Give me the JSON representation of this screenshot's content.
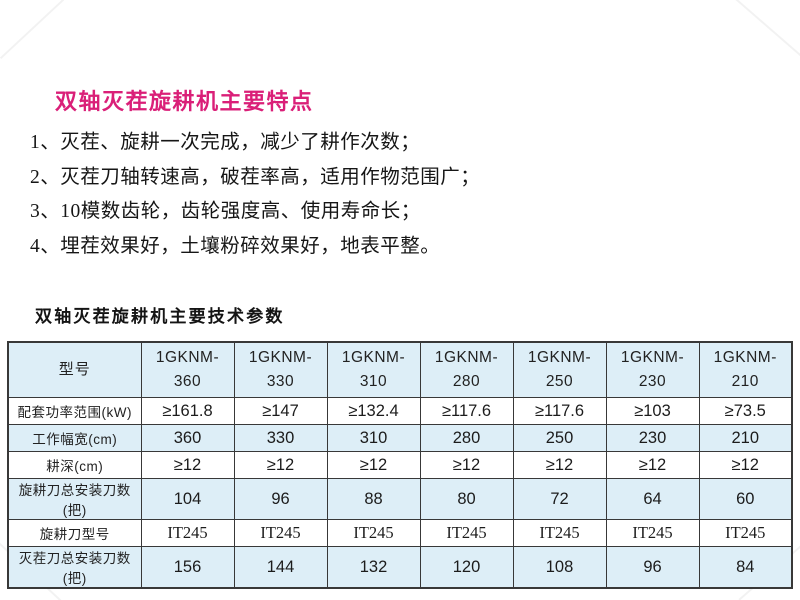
{
  "colors": {
    "title_pink": "#da1f78",
    "table_border": "#383838",
    "table_header_bg": "#ddeef7",
    "table_alt_row_bg": "#ddeef7"
  },
  "features": {
    "title": "双轴灭茬旋耕机主要特点",
    "items": [
      "1、灭茬、旋耕一次完成，减少了耕作次数；",
      "2、灭茬刀轴转速高，破茬率高，适用作物范围广；",
      "3、10模数齿轮，齿轮强度高、使用寿命长；",
      "4、埋茬效果好，土壤粉碎效果好，地表平整。"
    ]
  },
  "params": {
    "title": "双轴灭茬旋耕机主要技术参数"
  },
  "table": {
    "corner_header": "型号",
    "model_headers": [
      "1GKNM-\n360",
      "1GKNM-\n330",
      "1GKNM-\n310",
      "1GKNM-\n280",
      "1GKNM-\n250",
      "1GKNM-\n230",
      "1GKNM-\n210"
    ],
    "rows": [
      {
        "label": "配套功率范围(kW)",
        "serif": false,
        "values": [
          "≥161.8",
          "≥147",
          "≥132.4",
          "≥117.6",
          "≥117.6",
          "≥103",
          "≥73.5"
        ]
      },
      {
        "label": "工作幅宽(cm)",
        "serif": false,
        "values": [
          "360",
          "330",
          "310",
          "280",
          "250",
          "230",
          "210"
        ]
      },
      {
        "label": "耕深(cm)",
        "serif": false,
        "values": [
          "≥12",
          "≥12",
          "≥12",
          "≥12",
          "≥12",
          "≥12",
          "≥12"
        ]
      },
      {
        "label": "旋耕刀总安装刀数(把)",
        "serif": false,
        "values": [
          "104",
          "96",
          "88",
          "80",
          "72",
          "64",
          "60"
        ]
      },
      {
        "label": "旋耕刀型号",
        "serif": true,
        "values": [
          "IT245",
          "IT245",
          "IT245",
          "IT245",
          "IT245",
          "IT245",
          "IT245"
        ]
      },
      {
        "label": "灭茬刀总安装刀数(把)",
        "serif": false,
        "values": [
          "156",
          "144",
          "132",
          "120",
          "108",
          "96",
          "84"
        ]
      }
    ]
  }
}
